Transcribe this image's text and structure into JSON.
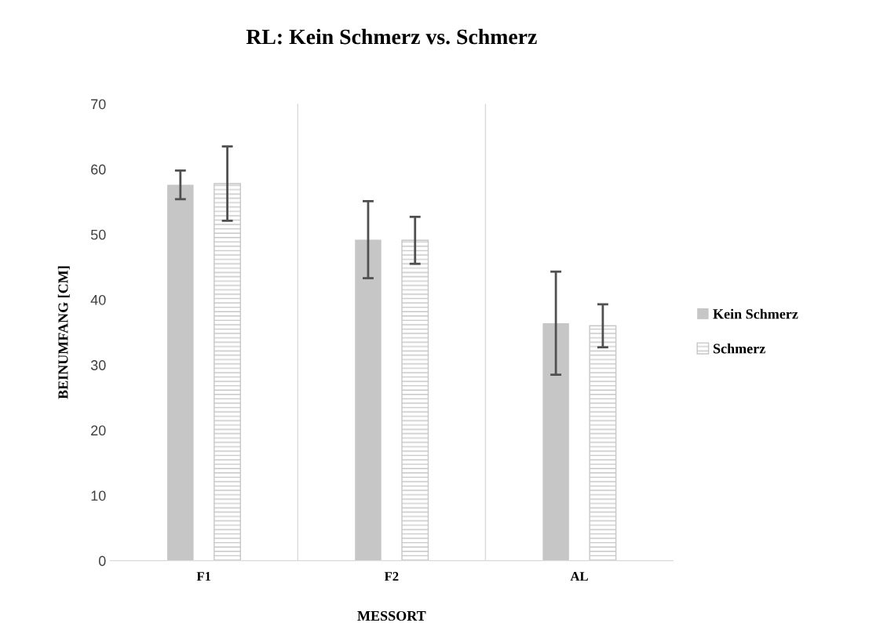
{
  "chart_data": {
    "type": "bar",
    "title": "RL: Kein Schmerz vs. Schmerz",
    "xlabel": "MESSORT",
    "ylabel": "BEINUMFANG [CM]",
    "categories": [
      "F1",
      "F2",
      "AL"
    ],
    "series": [
      {
        "name": "Kein Schmerz",
        "color": "#c6c6c6",
        "values": [
          57.6,
          49.2,
          36.4
        ],
        "errors": [
          2.2,
          5.9,
          7.9
        ]
      },
      {
        "name": "Schmerz",
        "color": "#c6c6c6",
        "values": [
          57.8,
          49.1,
          36.0
        ],
        "errors": [
          5.7,
          3.6,
          3.3
        ]
      }
    ],
    "ylim": [
      0,
      70
    ],
    "yticks": [
      0,
      10,
      20,
      30,
      40,
      50,
      60,
      70
    ],
    "grid": "x",
    "legend": "right"
  }
}
